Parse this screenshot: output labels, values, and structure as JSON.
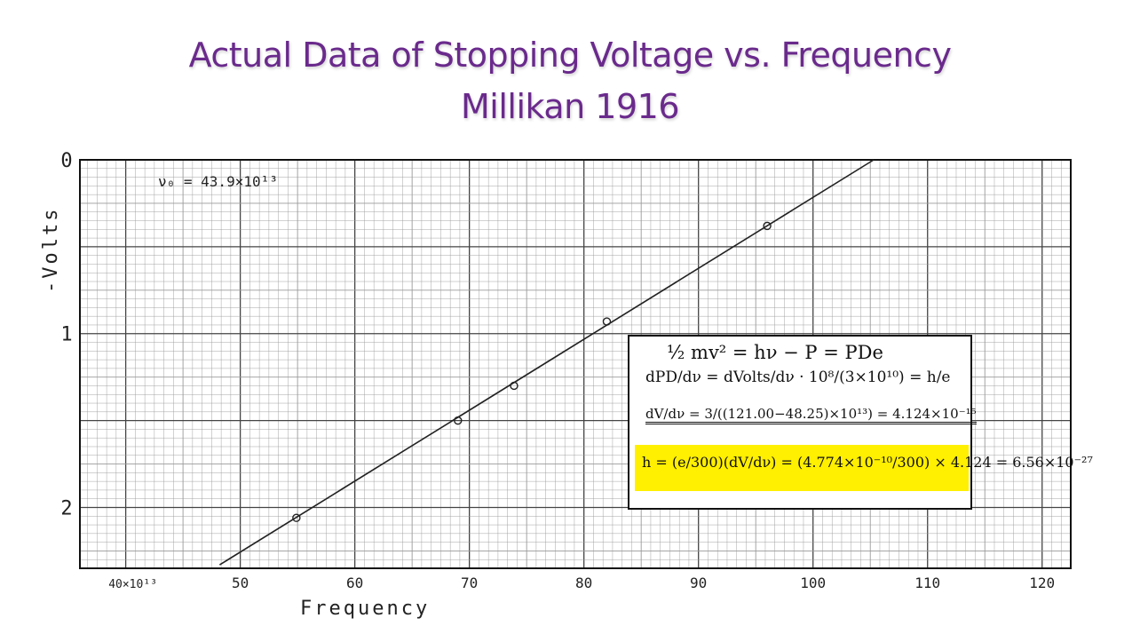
{
  "title": {
    "line1": "Actual Data of Stopping Voltage vs. Frequency",
    "line2": "Millikan 1916"
  },
  "colors": {
    "title": "#6a2a8c",
    "grid_minor": "#9a9a9a",
    "grid_major": "#444444",
    "highlight": "#ffef00"
  },
  "chart_data": {
    "type": "scatter",
    "xlabel": "Frequency",
    "ylabel": "-Volts",
    "x_tick_values": [
      40,
      50,
      60,
      70,
      80,
      90,
      100,
      110,
      120
    ],
    "x_tick_labels": [
      "40×10¹³",
      "50",
      "60",
      "70",
      "80",
      "90",
      "100",
      "110",
      "120"
    ],
    "y_tick_values": [
      0,
      1,
      2
    ],
    "y_tick_labels": [
      "0",
      "1",
      "2"
    ],
    "xlim": [
      36,
      122.5
    ],
    "ylim": [
      0,
      2.35
    ],
    "y_inverted": true,
    "grid": true,
    "annotation": "ν₀ = 43.9×10¹³",
    "points": [
      {
        "x": 54.9,
        "y": 2.06
      },
      {
        "x": 69.0,
        "y": 1.5
      },
      {
        "x": 73.9,
        "y": 1.3
      },
      {
        "x": 82.0,
        "y": 0.93
      },
      {
        "x": 96.0,
        "y": 0.38
      }
    ],
    "fit_line": {
      "x": [
        48.2,
        105.3
      ],
      "y": [
        2.33,
        0.0
      ]
    }
  },
  "formula": {
    "line1": "½ mv² = hν − P = PDe",
    "line2": "dPD/dν = dVolts/dν · 10⁸/(3×10¹⁰) = h/e",
    "line3": "dV/dν = 3/((121.00−48.25)×10¹³) = 4.124×10⁻¹⁵",
    "line4": "h = (e/300)(dV/dν) = (4.774×10⁻¹⁰/300) × 4.124 = 6.56×10⁻²⁷"
  }
}
